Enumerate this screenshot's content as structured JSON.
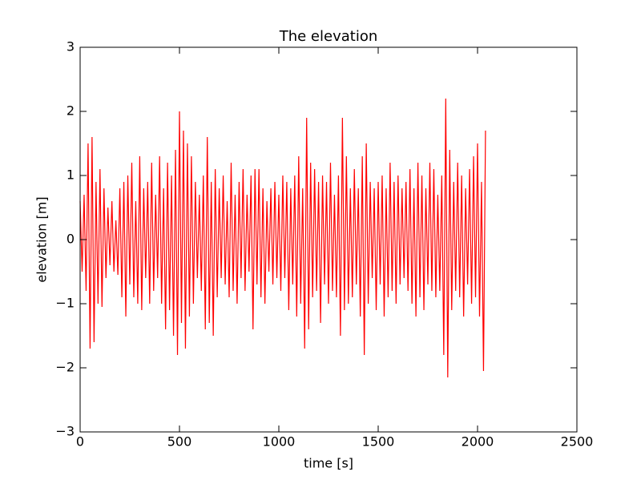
{
  "chart_data": {
    "type": "line",
    "title": "The elevation",
    "x_label": "time [s]",
    "y_label": "elevation [m]",
    "x": [
      0,
      10,
      20,
      30,
      40,
      50,
      60,
      70,
      80,
      90,
      100,
      110,
      120,
      130,
      140,
      150,
      160,
      170,
      180,
      190,
      200,
      210,
      220,
      230,
      240,
      250,
      260,
      270,
      280,
      290,
      300,
      310,
      320,
      330,
      340,
      350,
      360,
      370,
      380,
      390,
      400,
      410,
      420,
      430,
      440,
      450,
      460,
      470,
      480,
      490,
      500,
      510,
      520,
      530,
      540,
      550,
      560,
      570,
      580,
      590,
      600,
      610,
      620,
      630,
      640,
      650,
      660,
      670,
      680,
      690,
      700,
      710,
      720,
      730,
      740,
      750,
      760,
      770,
      780,
      790,
      800,
      810,
      820,
      830,
      840,
      850,
      860,
      870,
      880,
      890,
      900,
      910,
      920,
      930,
      940,
      950,
      960,
      970,
      980,
      990,
      1000,
      1010,
      1020,
      1030,
      1040,
      1050,
      1060,
      1070,
      1080,
      1090,
      1100,
      1110,
      1120,
      1130,
      1140,
      1150,
      1160,
      1170,
      1180,
      1190,
      1200,
      1210,
      1220,
      1230,
      1240,
      1250,
      1260,
      1270,
      1280,
      1290,
      1300,
      1310,
      1320,
      1330,
      1340,
      1350,
      1360,
      1370,
      1380,
      1390,
      1400,
      1410,
      1420,
      1430,
      1440,
      1450,
      1460,
      1470,
      1480,
      1490,
      1500,
      1510,
      1520,
      1530,
      1540,
      1550,
      1560,
      1570,
      1580,
      1590,
      1600,
      1610,
      1620,
      1630,
      1640,
      1650,
      1660,
      1670,
      1680,
      1690,
      1700,
      1710,
      1720,
      1730,
      1740,
      1750,
      1760,
      1770,
      1780,
      1790,
      1800,
      1810,
      1820,
      1830,
      1840,
      1850,
      1860,
      1870,
      1880,
      1890,
      1900,
      1910,
      1920,
      1930,
      1940,
      1950,
      1960,
      1970,
      1980,
      1990,
      2000,
      2010,
      2020,
      2030,
      2040
    ],
    "series": [
      {
        "color": "#ff0000",
        "values": [
          0.6,
          -0.5,
          0.7,
          -0.8,
          1.5,
          -1.7,
          1.6,
          -1.6,
          0.9,
          -1.0,
          1.1,
          -1.05,
          0.8,
          -0.6,
          0.5,
          -0.4,
          0.6,
          -0.5,
          0.3,
          -0.55,
          0.8,
          -0.9,
          0.9,
          -1.2,
          1.0,
          -0.7,
          1.2,
          -0.9,
          0.6,
          -1.0,
          1.3,
          -1.1,
          0.8,
          -0.6,
          0.9,
          -1.0,
          1.2,
          -0.8,
          0.7,
          -0.6,
          1.3,
          -1.0,
          0.8,
          -1.4,
          1.2,
          -1.1,
          1.0,
          -1.5,
          1.4,
          -1.8,
          2.0,
          -1.3,
          1.7,
          -1.7,
          1.5,
          -1.2,
          1.3,
          -1.0,
          0.9,
          -0.6,
          0.7,
          -0.8,
          1.0,
          -1.4,
          1.6,
          -1.3,
          0.9,
          -1.5,
          1.1,
          -0.9,
          0.8,
          -0.6,
          1.0,
          -0.7,
          0.6,
          -0.9,
          1.2,
          -0.8,
          0.7,
          -1.0,
          0.9,
          -0.6,
          1.1,
          -0.8,
          0.7,
          -0.5,
          1.0,
          -1.4,
          1.1,
          -0.7,
          1.1,
          -0.9,
          0.8,
          -1.0,
          0.6,
          -0.5,
          0.8,
          -0.7,
          0.9,
          -0.6,
          0.7,
          -0.8,
          1.0,
          -0.6,
          0.9,
          -1.1,
          0.8,
          -0.7,
          1.0,
          -1.2,
          1.3,
          -1.0,
          0.8,
          -1.7,
          1.9,
          -1.4,
          1.2,
          -0.9,
          1.1,
          -0.8,
          0.9,
          -1.3,
          1.0,
          -0.7,
          0.9,
          -1.0,
          1.2,
          -0.8,
          0.7,
          -0.9,
          1.0,
          -1.5,
          1.9,
          -1.1,
          1.3,
          -1.0,
          0.8,
          -0.9,
          1.1,
          -0.7,
          0.8,
          -1.2,
          1.3,
          -1.8,
          1.5,
          -1.0,
          0.9,
          -0.6,
          0.8,
          -1.1,
          0.9,
          -0.7,
          1.0,
          -1.2,
          0.8,
          -0.9,
          1.2,
          -0.8,
          0.9,
          -1.0,
          1.0,
          -0.7,
          0.8,
          -0.6,
          0.9,
          -0.8,
          1.1,
          -1.0,
          0.8,
          -1.2,
          1.2,
          -0.9,
          1.0,
          -1.1,
          0.8,
          -0.7,
          1.2,
          -0.8,
          1.1,
          -0.9,
          0.7,
          -0.8,
          1.0,
          -1.8,
          2.2,
          -2.15,
          1.4,
          -1.1,
          0.9,
          -0.8,
          1.2,
          -0.9,
          1.0,
          -1.2,
          0.8,
          -0.7,
          1.1,
          -1.0,
          1.3,
          -0.9,
          1.5,
          -1.2,
          0.9,
          -2.05,
          1.7
        ]
      }
    ],
    "xlim": [
      0,
      2500
    ],
    "xticks": [
      0,
      500,
      1000,
      1500,
      2000,
      2500
    ],
    "ylim": [
      -3,
      3
    ],
    "yticks": [
      {
        "value": -3,
        "label": "−3"
      },
      {
        "value": -2,
        "label": "−2"
      },
      {
        "value": -1,
        "label": "−1"
      },
      0,
      1,
      2,
      3
    ]
  }
}
